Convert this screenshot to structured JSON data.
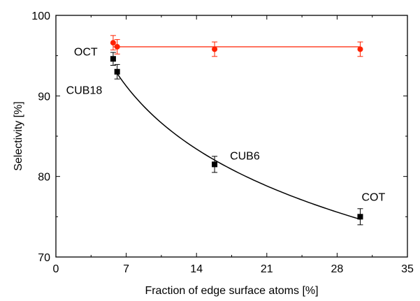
{
  "chart_data": {
    "type": "scatter",
    "xlabel": "Fraction of edge surface atoms [%]",
    "ylabel": "Selectivity [%]",
    "xlim": [
      0,
      35
    ],
    "ylim": [
      70,
      100
    ],
    "xticks": [
      0,
      7,
      14,
      21,
      28,
      35
    ],
    "yticks": [
      70,
      80,
      90,
      100
    ],
    "xtick_labels": [
      "0",
      "7",
      "14",
      "21",
      "28",
      "35"
    ],
    "ytick_labels": [
      "70",
      "80",
      "90",
      "100"
    ],
    "grid": false,
    "series": [
      {
        "color": "#ff2200",
        "marker": "circle",
        "x": [
          5.7,
          6.1,
          15.8,
          30.3
        ],
        "y": [
          96.6,
          96.1,
          95.8,
          95.8
        ],
        "yerr": [
          0.9,
          0.9,
          0.9,
          0.9
        ],
        "fit_line": "horizontal",
        "fit_y": 96.1,
        "fit_x_range": [
          5.7,
          30.3
        ]
      },
      {
        "color": "#000000",
        "marker": "square",
        "x": [
          5.7,
          6.1,
          15.8,
          30.3
        ],
        "y": [
          94.6,
          93.0,
          81.5,
          75.0
        ],
        "yerr": [
          0.8,
          0.9,
          1.0,
          1.0
        ],
        "fit_line": "curve",
        "fit_x_range": [
          6.1,
          30.3
        ]
      }
    ],
    "annotations": [
      {
        "text": "OCT",
        "x": 5.7,
        "y": 94.6
      },
      {
        "text": "CUB18",
        "x": 6.1,
        "y": 93.0
      },
      {
        "text": "CUB6",
        "x": 15.8,
        "y": 81.5
      },
      {
        "text": "COT",
        "x": 30.3,
        "y": 75.0
      }
    ]
  }
}
